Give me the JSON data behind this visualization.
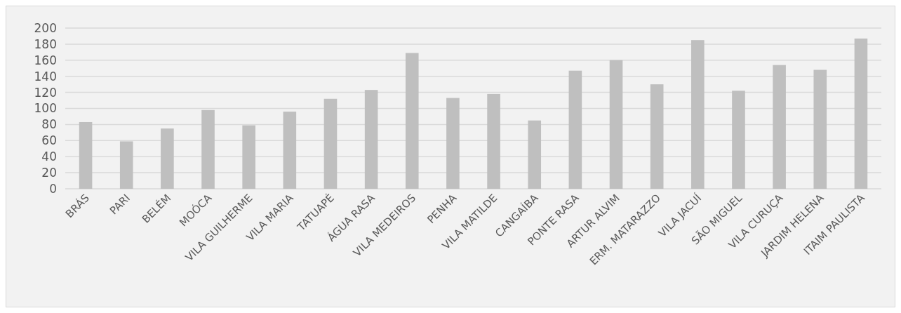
{
  "chart_data": {
    "type": "bar",
    "categories": [
      "BRÁS",
      "PARI",
      "BELÉM",
      "MOÓCA",
      "VILA GUILHERME",
      "VILA MARIA",
      "TATUAPÉ",
      "ÁGUA RASA",
      "VILA MEDEIROS",
      "PENHA",
      "VILA MATILDE",
      "CANGAÍBA",
      "PONTE RASA",
      "ARTUR ALVIM",
      "ERM. MATARAZZO",
      "VILA JACUÍ",
      "SÃO MIGUEL",
      "VILA CURUÇA",
      "JARDIM HELENA",
      "ITAIM PAULISTA"
    ],
    "values": [
      83,
      59,
      75,
      98,
      79,
      96,
      112,
      123,
      169,
      113,
      118,
      85,
      147,
      160,
      130,
      185,
      122,
      154,
      148,
      187
    ],
    "color": "#bfbfbf",
    "ylim": [
      0,
      200
    ],
    "yticks": [
      0,
      20,
      40,
      60,
      80,
      100,
      120,
      140,
      160,
      180,
      200
    ],
    "grid": "y"
  }
}
